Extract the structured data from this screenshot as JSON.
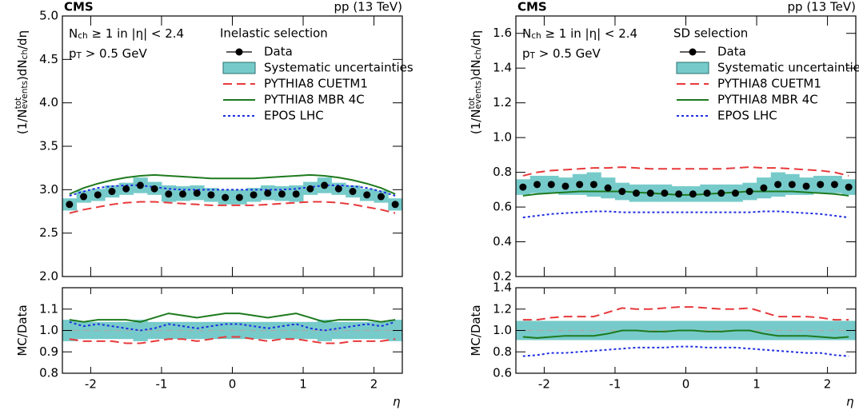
{
  "chart_data": [
    {
      "type": "line",
      "title": "CMS",
      "subtitle": "pp (13 TeV)",
      "ylabel": [
        {
          "t": "(1/N"
        },
        {
          "sup": "tot"
        },
        {
          "sub": "events"
        },
        {
          "t": ")dN"
        },
        {
          "sub": "ch"
        },
        {
          "t": "/dη"
        }
      ],
      "annotations": [
        [
          {
            "t": "N"
          },
          {
            "sub": "ch"
          },
          {
            "t": " ≥ 1 in |η| < 2.4"
          }
        ],
        [
          {
            "t": "p"
          },
          {
            "sub": "T"
          },
          {
            "t": " > 0.5 GeV"
          }
        ]
      ],
      "legend_title": "Inelastic selection",
      "legend": "upper right",
      "xlim": [
        -2.4,
        2.4
      ],
      "xticks": [
        -2,
        -1,
        0,
        1,
        2
      ],
      "xtick_labels": false,
      "ylim": [
        2.0,
        5.0
      ],
      "yticks": [
        {
          "value": 2,
          "label": "2.0"
        },
        2.5,
        {
          "value": 3,
          "label": "3.0"
        },
        3.5,
        {
          "value": 4,
          "label": "4.0"
        },
        4.5,
        {
          "value": 5,
          "label": "5.0"
        }
      ],
      "x": [
        -2.3,
        -2.1,
        -1.9,
        -1.7,
        -1.5,
        -1.3,
        -1.1,
        -0.9,
        -0.7,
        -0.5,
        -0.3,
        -0.1,
        0.1,
        0.3,
        0.5,
        0.7,
        0.9,
        1.1,
        1.3,
        1.5,
        1.7,
        1.9,
        2.1,
        2.3
      ],
      "series": [
        {
          "name": "Data",
          "color": "#000000",
          "marker": "circle",
          "values": [
            2.83,
            2.92,
            2.94,
            2.98,
            3.01,
            3.05,
            3.01,
            2.95,
            2.95,
            2.96,
            2.94,
            2.91,
            2.91,
            2.94,
            2.96,
            2.95,
            2.95,
            3.01,
            3.05,
            3.01,
            2.98,
            2.94,
            2.92,
            2.83
          ]
        },
        {
          "name": "Systematic uncertainties",
          "color": "#76cbca",
          "lower": [
            2.76,
            2.85,
            2.87,
            2.91,
            2.94,
            2.96,
            2.94,
            2.86,
            2.87,
            2.88,
            2.86,
            2.83,
            2.83,
            2.86,
            2.88,
            2.87,
            2.86,
            2.94,
            2.96,
            2.94,
            2.91,
            2.87,
            2.85,
            2.76
          ],
          "upper": [
            2.9,
            2.99,
            3.01,
            3.05,
            3.08,
            3.14,
            3.09,
            3.05,
            3.04,
            3.05,
            3.02,
            3.0,
            3.0,
            3.02,
            3.05,
            3.04,
            3.05,
            3.09,
            3.14,
            3.08,
            3.05,
            3.01,
            2.99,
            2.9
          ]
        },
        {
          "name": "PYTHIA8 CUETM1",
          "color": "#e8393b",
          "linestyle": "dashed",
          "values": [
            2.73,
            2.77,
            2.8,
            2.83,
            2.85,
            2.86,
            2.86,
            2.85,
            2.84,
            2.83,
            2.82,
            2.82,
            2.82,
            2.82,
            2.83,
            2.84,
            2.85,
            2.86,
            2.86,
            2.85,
            2.83,
            2.8,
            2.77,
            2.73
          ]
        },
        {
          "name": "PYTHIA8 MBR 4C",
          "color": "#1e7a1e",
          "linestyle": "solid",
          "values": [
            2.95,
            3.02,
            3.07,
            3.11,
            3.14,
            3.16,
            3.17,
            3.16,
            3.15,
            3.14,
            3.13,
            3.13,
            3.13,
            3.13,
            3.14,
            3.15,
            3.16,
            3.17,
            3.16,
            3.14,
            3.11,
            3.07,
            3.02,
            2.95
          ]
        },
        {
          "name": "EPOS LHC",
          "color": "#1f2ee0",
          "linestyle": "dotted",
          "values": [
            2.93,
            2.98,
            3.02,
            3.04,
            3.05,
            3.05,
            3.03,
            3.01,
            3.0,
            3.0,
            3.0,
            3.0,
            3.0,
            3.0,
            3.0,
            3.0,
            3.01,
            3.03,
            3.05,
            3.05,
            3.04,
            3.02,
            2.98,
            2.93
          ]
        }
      ]
    },
    {
      "type": "line",
      "ylabel": [
        {
          "t": "MC/Data"
        }
      ],
      "xlabel": "η",
      "reference": 1,
      "xlim": [
        -2.4,
        2.4
      ],
      "xticks": [
        -2,
        -1,
        0,
        1,
        2
      ],
      "xtick_labels": true,
      "ylim": [
        0.8,
        1.2
      ],
      "yticks": [
        0.8,
        0.9,
        {
          "value": 1,
          "label": "1.0"
        },
        1.1
      ],
      "x": [
        -2.3,
        -2.1,
        -1.9,
        -1.7,
        -1.5,
        -1.3,
        -1.1,
        -0.9,
        -0.7,
        -0.5,
        -0.3,
        -0.1,
        0.1,
        0.3,
        0.5,
        0.7,
        0.9,
        1.1,
        1.3,
        1.5,
        1.7,
        1.9,
        2.1,
        2.3
      ],
      "series": [
        {
          "color": "#76cbca",
          "lower": [
            0.95,
            0.96,
            0.96,
            0.96,
            0.96,
            0.95,
            0.96,
            0.96,
            0.96,
            0.96,
            0.96,
            0.96,
            0.96,
            0.96,
            0.96,
            0.96,
            0.96,
            0.96,
            0.95,
            0.96,
            0.96,
            0.96,
            0.96,
            0.95
          ],
          "upper": [
            1.05,
            1.04,
            1.04,
            1.04,
            1.04,
            1.05,
            1.04,
            1.04,
            1.04,
            1.04,
            1.04,
            1.04,
            1.04,
            1.04,
            1.04,
            1.04,
            1.04,
            1.04,
            1.05,
            1.04,
            1.04,
            1.04,
            1.04,
            1.05
          ]
        },
        {
          "color": "#e8393b",
          "linestyle": "dashed",
          "values": [
            0.96,
            0.95,
            0.95,
            0.95,
            0.94,
            0.94,
            0.95,
            0.96,
            0.96,
            0.95,
            0.96,
            0.97,
            0.97,
            0.96,
            0.95,
            0.96,
            0.96,
            0.95,
            0.94,
            0.94,
            0.95,
            0.95,
            0.95,
            0.96
          ]
        },
        {
          "color": "#1e7a1e",
          "linestyle": "solid",
          "values": [
            1.05,
            1.04,
            1.05,
            1.05,
            1.05,
            1.04,
            1.06,
            1.08,
            1.07,
            1.06,
            1.07,
            1.08,
            1.08,
            1.07,
            1.06,
            1.07,
            1.08,
            1.06,
            1.04,
            1.05,
            1.05,
            1.05,
            1.04,
            1.05
          ]
        },
        {
          "color": "#1f2ee0",
          "linestyle": "dotted",
          "values": [
            1.04,
            1.02,
            1.03,
            1.02,
            1.01,
            1.0,
            1.01,
            1.03,
            1.02,
            1.01,
            1.02,
            1.03,
            1.03,
            1.02,
            1.01,
            1.02,
            1.03,
            1.01,
            1.0,
            1.01,
            1.02,
            1.03,
            1.02,
            1.04
          ]
        }
      ]
    },
    {
      "type": "line",
      "title": "CMS",
      "subtitle": "pp (13 TeV)",
      "ylabel": [
        {
          "t": "(1/N"
        },
        {
          "sup": "tot"
        },
        {
          "sub": "events"
        },
        {
          "t": ")dN"
        },
        {
          "sub": "ch"
        },
        {
          "t": "/dη"
        }
      ],
      "annotations": [
        [
          {
            "t": "N"
          },
          {
            "sub": "ch"
          },
          {
            "t": " ≥ 1 in |η| < 2.4"
          }
        ],
        [
          {
            "t": "p"
          },
          {
            "sub": "T"
          },
          {
            "t": " > 0.5 GeV"
          }
        ]
      ],
      "legend_title": "SD selection",
      "legend": "upper right",
      "xlim": [
        -2.4,
        2.4
      ],
      "xticks": [
        -2,
        -1,
        0,
        1,
        2
      ],
      "xtick_labels": false,
      "ylim": [
        0.2,
        1.7
      ],
      "yticks": [
        0.2,
        0.4,
        0.6,
        0.8,
        {
          "value": 1,
          "label": "1.0"
        },
        1.2,
        1.4,
        1.6
      ],
      "x": [
        -2.3,
        -2.1,
        -1.9,
        -1.7,
        -1.5,
        -1.3,
        -1.1,
        -0.9,
        -0.7,
        -0.5,
        -0.3,
        -0.1,
        0.1,
        0.3,
        0.5,
        0.7,
        0.9,
        1.1,
        1.3,
        1.5,
        1.7,
        1.9,
        2.1,
        2.3
      ],
      "series": [
        {
          "name": "Data",
          "color": "#000000",
          "marker": "circle",
          "values": [
            0.715,
            0.73,
            0.73,
            0.72,
            0.73,
            0.73,
            0.71,
            0.69,
            0.68,
            0.68,
            0.68,
            0.675,
            0.675,
            0.68,
            0.68,
            0.68,
            0.69,
            0.71,
            0.73,
            0.73,
            0.72,
            0.73,
            0.73,
            0.715
          ]
        },
        {
          "name": "Systematic uncertainties",
          "color": "#76cbca",
          "lower": [
            0.67,
            0.68,
            0.68,
            0.67,
            0.67,
            0.66,
            0.65,
            0.64,
            0.63,
            0.63,
            0.63,
            0.63,
            0.63,
            0.63,
            0.63,
            0.63,
            0.64,
            0.65,
            0.66,
            0.67,
            0.67,
            0.68,
            0.68,
            0.67
          ],
          "upper": [
            0.76,
            0.78,
            0.78,
            0.77,
            0.79,
            0.8,
            0.77,
            0.74,
            0.73,
            0.73,
            0.73,
            0.72,
            0.72,
            0.73,
            0.73,
            0.73,
            0.74,
            0.77,
            0.8,
            0.79,
            0.77,
            0.78,
            0.78,
            0.76
          ]
        },
        {
          "name": "PYTHIA8 CUETM1",
          "color": "#e8393b",
          "linestyle": "dashed",
          "values": [
            0.78,
            0.8,
            0.81,
            0.815,
            0.82,
            0.825,
            0.825,
            0.83,
            0.825,
            0.82,
            0.82,
            0.82,
            0.82,
            0.82,
            0.82,
            0.825,
            0.83,
            0.825,
            0.825,
            0.82,
            0.815,
            0.81,
            0.8,
            0.78
          ]
        },
        {
          "name": "PYTHIA8 MBR 4C",
          "color": "#1e7a1e",
          "linestyle": "solid",
          "values": [
            0.665,
            0.675,
            0.68,
            0.685,
            0.69,
            0.69,
            0.69,
            0.69,
            0.685,
            0.68,
            0.675,
            0.67,
            0.67,
            0.675,
            0.68,
            0.685,
            0.69,
            0.69,
            0.69,
            0.69,
            0.685,
            0.68,
            0.675,
            0.665
          ]
        },
        {
          "name": "EPOS LHC",
          "color": "#1f2ee0",
          "linestyle": "dotted",
          "values": [
            0.54,
            0.55,
            0.56,
            0.565,
            0.57,
            0.575,
            0.575,
            0.57,
            0.57,
            0.57,
            0.57,
            0.57,
            0.57,
            0.57,
            0.57,
            0.57,
            0.57,
            0.575,
            0.575,
            0.57,
            0.565,
            0.56,
            0.55,
            0.54
          ]
        }
      ]
    },
    {
      "type": "line",
      "ylabel": [
        {
          "t": "MC/Data"
        }
      ],
      "xlabel": "η",
      "reference": 1,
      "xlim": [
        -2.4,
        2.4
      ],
      "xticks": [
        -2,
        -1,
        0,
        1,
        2
      ],
      "xtick_labels": true,
      "ylim": [
        0.6,
        1.4
      ],
      "yticks": [
        0.6,
        0.8,
        {
          "value": 1,
          "label": "1.0"
        },
        1.2,
        1.4
      ],
      "x": [
        -2.3,
        -2.1,
        -1.9,
        -1.7,
        -1.5,
        -1.3,
        -1.1,
        -0.9,
        -0.7,
        -0.5,
        -0.3,
        -0.1,
        0.1,
        0.3,
        0.5,
        0.7,
        0.9,
        1.1,
        1.3,
        1.5,
        1.7,
        1.9,
        2.1,
        2.3
      ],
      "series": [
        {
          "color": "#76cbca",
          "lower": [
            0.91,
            0.91,
            0.91,
            0.91,
            0.91,
            0.91,
            0.91,
            0.91,
            0.91,
            0.91,
            0.91,
            0.91,
            0.91,
            0.91,
            0.91,
            0.91,
            0.91,
            0.91,
            0.91,
            0.91,
            0.91,
            0.91,
            0.91,
            0.91
          ],
          "upper": [
            1.09,
            1.09,
            1.09,
            1.09,
            1.09,
            1.09,
            1.09,
            1.09,
            1.09,
            1.09,
            1.09,
            1.09,
            1.09,
            1.09,
            1.09,
            1.09,
            1.09,
            1.09,
            1.09,
            1.09,
            1.09,
            1.09,
            1.09,
            1.09
          ]
        },
        {
          "color": "#e8393b",
          "linestyle": "dashed",
          "values": [
            1.1,
            1.1,
            1.12,
            1.13,
            1.13,
            1.13,
            1.17,
            1.21,
            1.2,
            1.2,
            1.21,
            1.22,
            1.22,
            1.21,
            1.2,
            1.2,
            1.21,
            1.17,
            1.13,
            1.13,
            1.13,
            1.12,
            1.1,
            1.1
          ]
        },
        {
          "color": "#1e7a1e",
          "linestyle": "solid",
          "values": [
            0.94,
            0.93,
            0.94,
            0.95,
            0.95,
            0.95,
            0.97,
            1.0,
            1.0,
            0.99,
            0.99,
            1.0,
            1.0,
            0.99,
            0.99,
            1.0,
            1.0,
            0.97,
            0.95,
            0.95,
            0.95,
            0.94,
            0.93,
            0.94
          ]
        },
        {
          "color": "#1f2ee0",
          "linestyle": "dotted",
          "values": [
            0.76,
            0.77,
            0.79,
            0.79,
            0.8,
            0.81,
            0.82,
            0.83,
            0.84,
            0.84,
            0.84,
            0.85,
            0.85,
            0.84,
            0.84,
            0.84,
            0.83,
            0.82,
            0.81,
            0.8,
            0.79,
            0.79,
            0.77,
            0.76
          ]
        }
      ]
    }
  ]
}
